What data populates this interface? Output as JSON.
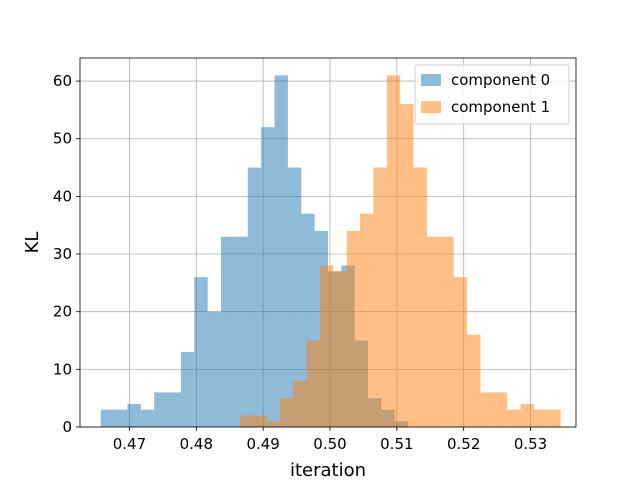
{
  "chart_data": {
    "type": "histogram",
    "xlabel": "iteration",
    "ylabel": "KL",
    "xlim": [
      0.4626,
      0.5368
    ],
    "ylim": [
      0,
      64
    ],
    "xticks": [
      0.47,
      0.48,
      0.49,
      0.5,
      0.51,
      0.52,
      0.53
    ],
    "xtick_labels": [
      "0.47",
      "0.48",
      "0.49",
      "0.50",
      "0.51",
      "0.52",
      "0.53"
    ],
    "yticks": [
      0,
      10,
      20,
      30,
      40,
      50,
      60
    ],
    "ytick_labels": [
      "0",
      "10",
      "20",
      "30",
      "40",
      "50",
      "60"
    ],
    "grid": true,
    "legend_position": "top-right",
    "series": [
      {
        "name": "component 0",
        "color": "#1f77b4",
        "opacity": 0.5,
        "bin_start": 0.4657,
        "bin_width": 0.002,
        "values": [
          3,
          3,
          4,
          3,
          6,
          6,
          13,
          26,
          20,
          33,
          33,
          45,
          52,
          61,
          45,
          37,
          34,
          27,
          28,
          15,
          5,
          3,
          1
        ]
      },
      {
        "name": "component 1",
        "color": "#ff7f0e",
        "opacity": 0.5,
        "bin_start": 0.4865,
        "bin_width": 0.002,
        "values": [
          2,
          2,
          1,
          5,
          8,
          15,
          28,
          27,
          34,
          37,
          45,
          61,
          56,
          45,
          33,
          33,
          26,
          16,
          6,
          6,
          3,
          4,
          3,
          3
        ]
      }
    ]
  }
}
